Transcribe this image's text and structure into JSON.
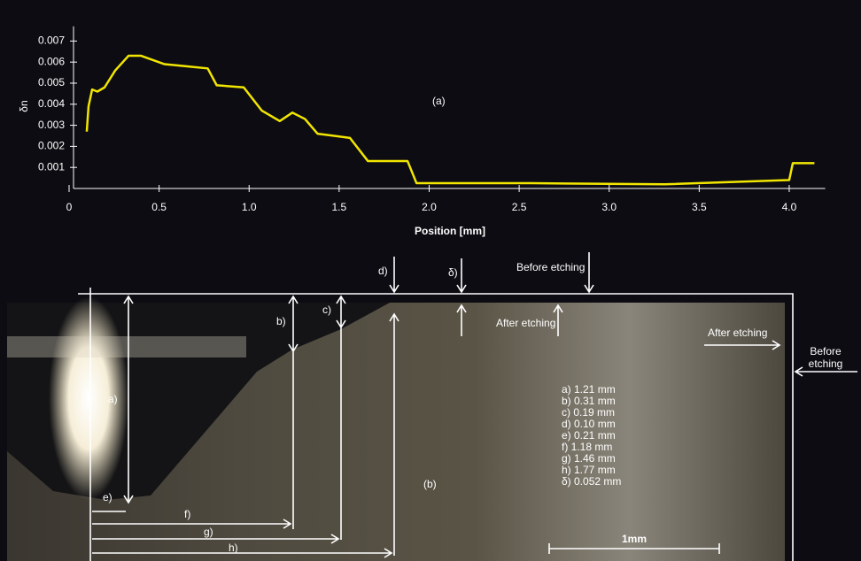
{
  "chart_data": {
    "type": "line",
    "ylabel": "δn",
    "xlabel": "Position [mm]",
    "annotation": "(a)",
    "xlim": [
      0,
      4.2
    ],
    "ylim": [
      0,
      0.0077
    ],
    "xticks": [
      0,
      0.5,
      {
        "value": 1,
        "label": "1.0"
      },
      1.5,
      {
        "value": 2,
        "label": "2.0"
      },
      2.5,
      {
        "value": 3,
        "label": "3.0"
      },
      3.5,
      {
        "value": 4,
        "label": "4.0"
      }
    ],
    "yticks": [
      0.001,
      0.002,
      0.003,
      0.004,
      0.005,
      0.006,
      0.007
    ],
    "series": [
      {
        "color": "#f2e600",
        "x": [
          0.098,
          0.108,
          0.128,
          0.157,
          0.197,
          0.256,
          0.33,
          0.4,
          0.53,
          0.65,
          0.77,
          0.82,
          0.97,
          1.07,
          1.17,
          1.24,
          1.31,
          1.38,
          1.56,
          1.66,
          1.88,
          1.93,
          2.57,
          3.31,
          4.0,
          4.02,
          4.14
        ],
        "values": [
          0.0027,
          0.0039,
          0.0047,
          0.0046,
          0.0048,
          0.0056,
          0.0063,
          0.0063,
          0.0059,
          0.0058,
          0.0057,
          0.0049,
          0.0048,
          0.0037,
          0.0032,
          0.0036,
          0.0033,
          0.0026,
          0.0024,
          0.0013,
          0.0013,
          0.00025,
          0.00025,
          0.0002,
          0.0004,
          0.0012,
          0.0012
        ]
      }
    ]
  },
  "photo": {
    "label": "(b)",
    "marks": {
      "a": "a)",
      "b": "b)",
      "c": "c)",
      "d": "d)",
      "delta": "δ)",
      "e": "e)",
      "f": "f)",
      "g": "g)",
      "h": "h)"
    },
    "before_etching_top": "Before etching",
    "after_etching_mid": "After etching",
    "after_etching_right": "After etching",
    "before_etching_right": [
      "Before",
      "etching"
    ],
    "measurements": [
      "a) 1.21 mm",
      "b) 0.31 mm",
      "c) 0.19 mm",
      "d) 0.10 mm",
      "e) 0.21 mm",
      "f) 1.18 mm",
      "g) 1.46 mm",
      "h) 1.77 mm",
      "δ) 0.052 mm"
    ],
    "scale_bar": "1mm"
  }
}
